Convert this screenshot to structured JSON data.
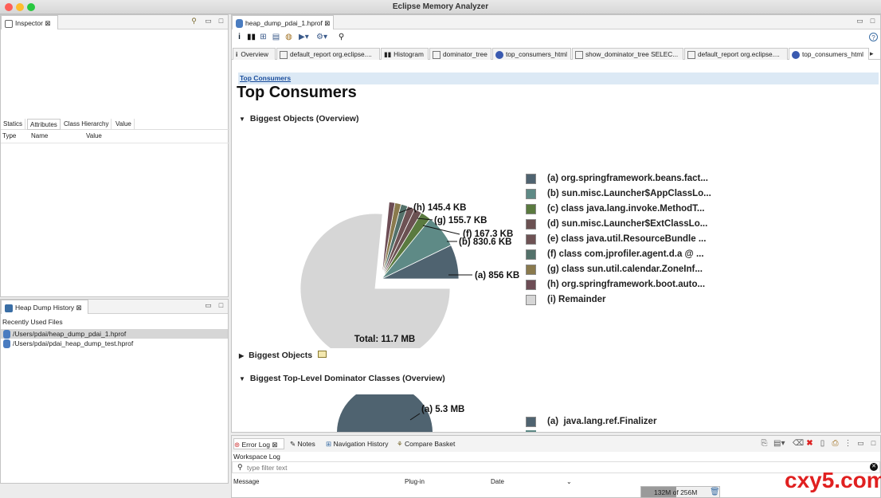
{
  "window": {
    "title": "Eclipse Memory Analyzer"
  },
  "inspector": {
    "tab_label": "Inspector",
    "subtabs": [
      "Statics",
      "Attributes",
      "Class Hierarchy",
      "Value"
    ],
    "columns": [
      "Type",
      "Name",
      "Value"
    ]
  },
  "heap_history": {
    "tab_label": "Heap Dump History",
    "section_label": "Recently Used Files",
    "files": [
      "/Users/pdai/heap_dump_pdai_1.hprof",
      "/Users/pdai/pdai_heap_dump_test.hprof"
    ]
  },
  "editor": {
    "file_tab": "heap_dump_pdai_1.hprof",
    "tabs": [
      "Overview",
      "default_report  org.eclipse....",
      "Histogram",
      "dominator_tree",
      "top_consumers_html",
      "show_dominator_tree  SELEC...",
      "default_report  org.eclipse....",
      "top_consumers_html"
    ],
    "breadcrumb": "Top Consumers",
    "heading": "Top Consumers",
    "sections": {
      "biggest_overview": "Biggest Objects (Overview)",
      "biggest_objects": "Biggest Objects",
      "dominator_overview": "Biggest Top-Level Dominator Classes (Overview)"
    }
  },
  "chart_data": [
    {
      "type": "pie",
      "total_label": "Total: 11.7 MB",
      "slices": [
        {
          "key": "(a)",
          "label": "org.springframework.beans.fact...",
          "value_label": "856 KB",
          "value": 856,
          "color": "#4f6370"
        },
        {
          "key": "(b)",
          "label": "sun.misc.Launcher$AppClassLo...",
          "value_label": "830.6 KB",
          "value": 830.6,
          "color": "#5e8a86"
        },
        {
          "key": "(c)",
          "label": "class java.lang.invoke.MethodT...",
          "value_label": "",
          "value": 260,
          "color": "#5a7a3f"
        },
        {
          "key": "(d)",
          "label": "sun.misc.Launcher$ExtClassLo...",
          "value_label": "",
          "value": 190,
          "color": "#6b5152"
        },
        {
          "key": "(e)",
          "label": "class java.util.ResourceBundle ...",
          "value_label": "",
          "value": 185,
          "color": "#6e5254"
        },
        {
          "key": "(f)",
          "label": "class com.jprofiler.agent.d.a @ ...",
          "value_label": "167.3 KB",
          "value": 167.3,
          "color": "#53716a"
        },
        {
          "key": "(g)",
          "label": "class sun.util.calendar.ZoneInf...",
          "value_label": "155.7 KB",
          "value": 155.7,
          "color": "#8a7a4d"
        },
        {
          "key": "(h)",
          "label": "org.springframework.boot.auto...",
          "value_label": "145.4 KB",
          "value": 145.4,
          "color": "#6d4d55"
        },
        {
          "key": "(i)",
          "label": "Remainder",
          "value_label": "8.9 MB",
          "value": 9113,
          "color": "#d6d6d6"
        }
      ]
    },
    {
      "type": "pie",
      "slices": [
        {
          "key": "(a)",
          "label": "java.lang.ref.Finalizer",
          "value_label": "5.3 MB",
          "color": "#4f6370"
        }
      ]
    }
  ],
  "bottom": {
    "tabs": [
      "Error Log",
      "Notes",
      "Navigation History",
      "Compare Basket"
    ],
    "workspace_log": "Workspace Log",
    "filter_placeholder": "type filter text",
    "columns": [
      "Message",
      "Plug-in",
      "Date"
    ]
  },
  "status": {
    "memory": "132M of 256M"
  },
  "watermark": "cxy5.com"
}
